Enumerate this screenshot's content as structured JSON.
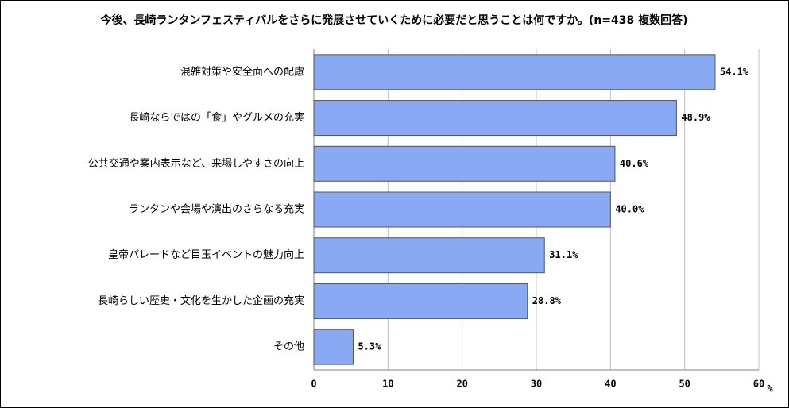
{
  "chart_data": {
    "type": "barh",
    "title": "今後、長崎ランタンフェスティバルをさらに発展させていくために必要だと思うことは何ですか。(n=438 複数回答)",
    "categories": [
      "混雑対策や安全面への配慮",
      "長崎ならではの「食」やグルメの充実",
      "公共交通や案内表示など、来場しやすさの向上",
      "ランタンや会場や演出のさらなる充実",
      "皇帝パレードなど目玉イベントの魅力向上",
      "長崎らしい歴史・文化を生かした企画の充実",
      "その他"
    ],
    "values": [
      54.1,
      48.9,
      40.6,
      40.0,
      31.1,
      28.8,
      5.3
    ],
    "value_labels": [
      "54.1%",
      "48.9%",
      "40.6%",
      "40.0%",
      "31.1%",
      "28.8%",
      "5.3%"
    ],
    "color": "#8aa9f5",
    "xlim": [
      0,
      60
    ],
    "xticks": [
      0,
      10,
      20,
      30,
      40,
      50,
      60
    ],
    "xlabel": "%",
    "grid": true
  }
}
